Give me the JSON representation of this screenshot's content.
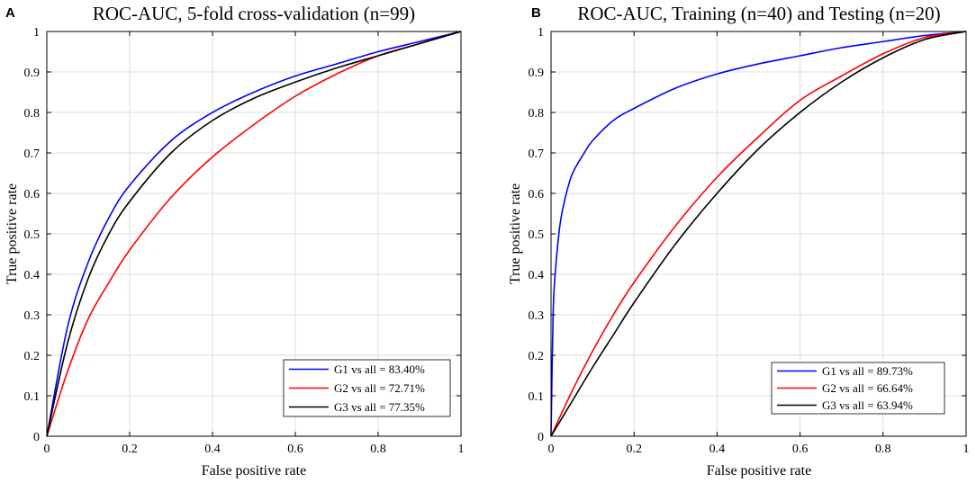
{
  "chart_data": [
    {
      "panel": "A",
      "type": "line",
      "title": "ROC-AUC, 5-fold cross-validation (n=99)",
      "xlabel": "False positive rate",
      "ylabel": "True positive rate",
      "xlim": [
        0,
        1
      ],
      "ylim": [
        0,
        1
      ],
      "xticks": [
        0,
        0.2,
        0.4,
        0.6,
        0.8,
        1
      ],
      "xtick_labels": [
        "0",
        "0.2",
        "0.4",
        "0.6",
        "0.8",
        "1"
      ],
      "yticks": [
        0,
        0.1,
        0.2,
        0.3,
        0.4,
        0.5,
        0.6,
        0.7,
        0.8,
        0.9,
        1
      ],
      "ytick_labels": [
        "0",
        "0.1",
        "0.2",
        "0.3",
        "0.4",
        "0.5",
        "0.6",
        "0.7",
        "0.8",
        "0.9",
        "1"
      ],
      "grid": true,
      "legend_position": "bottom-right",
      "series": [
        {
          "name": "G1 vs all = 83.40%",
          "color": "#0000ff",
          "x": [
            0,
            0.05,
            0.1,
            0.15,
            0.2,
            0.3,
            0.4,
            0.5,
            0.6,
            0.7,
            0.8,
            0.9,
            1
          ],
          "y": [
            0,
            0.27,
            0.43,
            0.54,
            0.62,
            0.73,
            0.8,
            0.85,
            0.89,
            0.92,
            0.95,
            0.975,
            1
          ]
        },
        {
          "name": "G2 vs all = 72.71%",
          "color": "#ff0000",
          "x": [
            0,
            0.05,
            0.1,
            0.15,
            0.2,
            0.3,
            0.4,
            0.5,
            0.6,
            0.7,
            0.8,
            0.9,
            1
          ],
          "y": [
            0,
            0.16,
            0.29,
            0.38,
            0.46,
            0.59,
            0.69,
            0.77,
            0.84,
            0.895,
            0.94,
            0.97,
            1
          ]
        },
        {
          "name": "G3 vs all = 77.35%",
          "color": "#000000",
          "x": [
            0,
            0.05,
            0.1,
            0.15,
            0.2,
            0.3,
            0.4,
            0.5,
            0.6,
            0.7,
            0.8,
            0.9,
            1
          ],
          "y": [
            0,
            0.23,
            0.39,
            0.5,
            0.58,
            0.7,
            0.78,
            0.835,
            0.875,
            0.91,
            0.94,
            0.97,
            1
          ]
        }
      ]
    },
    {
      "panel": "B",
      "type": "line",
      "title": "ROC-AUC, Training (n=40) and Testing (n=20)",
      "xlabel": "False positive rate",
      "ylabel": "True positive rate",
      "xlim": [
        0,
        1
      ],
      "ylim": [
        0,
        1
      ],
      "xticks": [
        0,
        0.2,
        0.4,
        0.6,
        0.8,
        1
      ],
      "xtick_labels": [
        "0",
        "0.2",
        "0.4",
        "0.6",
        "0.8",
        "1"
      ],
      "yticks": [
        0,
        0.1,
        0.2,
        0.3,
        0.4,
        0.5,
        0.6,
        0.7,
        0.8,
        0.9,
        1
      ],
      "ytick_labels": [
        "0",
        "0.1",
        "0.2",
        "0.3",
        "0.4",
        "0.5",
        "0.6",
        "0.7",
        "0.8",
        "0.9",
        "1"
      ],
      "grid": true,
      "legend_position": "bottom-right",
      "series": [
        {
          "name": "G1 vs all = 89.73%",
          "color": "#0000ff",
          "x": [
            0,
            0.005,
            0.01,
            0.02,
            0.03,
            0.05,
            0.08,
            0.1,
            0.15,
            0.2,
            0.3,
            0.4,
            0.5,
            0.6,
            0.7,
            0.8,
            0.9,
            1
          ],
          "y": [
            0,
            0.3,
            0.4,
            0.51,
            0.57,
            0.645,
            0.7,
            0.73,
            0.78,
            0.81,
            0.86,
            0.895,
            0.92,
            0.94,
            0.96,
            0.975,
            0.99,
            1
          ]
        },
        {
          "name": "G2 vs all = 66.64%",
          "color": "#ff0000",
          "x": [
            0,
            0.05,
            0.1,
            0.15,
            0.2,
            0.3,
            0.4,
            0.5,
            0.6,
            0.7,
            0.8,
            0.9,
            1
          ],
          "y": [
            0,
            0.11,
            0.21,
            0.3,
            0.38,
            0.52,
            0.64,
            0.74,
            0.83,
            0.89,
            0.945,
            0.985,
            1
          ]
        },
        {
          "name": "G3 vs all = 63.94%",
          "color": "#000000",
          "x": [
            0,
            0.05,
            0.1,
            0.15,
            0.2,
            0.3,
            0.4,
            0.5,
            0.6,
            0.7,
            0.8,
            0.9,
            1
          ],
          "y": [
            0,
            0.085,
            0.17,
            0.25,
            0.33,
            0.475,
            0.6,
            0.71,
            0.8,
            0.875,
            0.935,
            0.98,
            1
          ]
        }
      ]
    }
  ]
}
